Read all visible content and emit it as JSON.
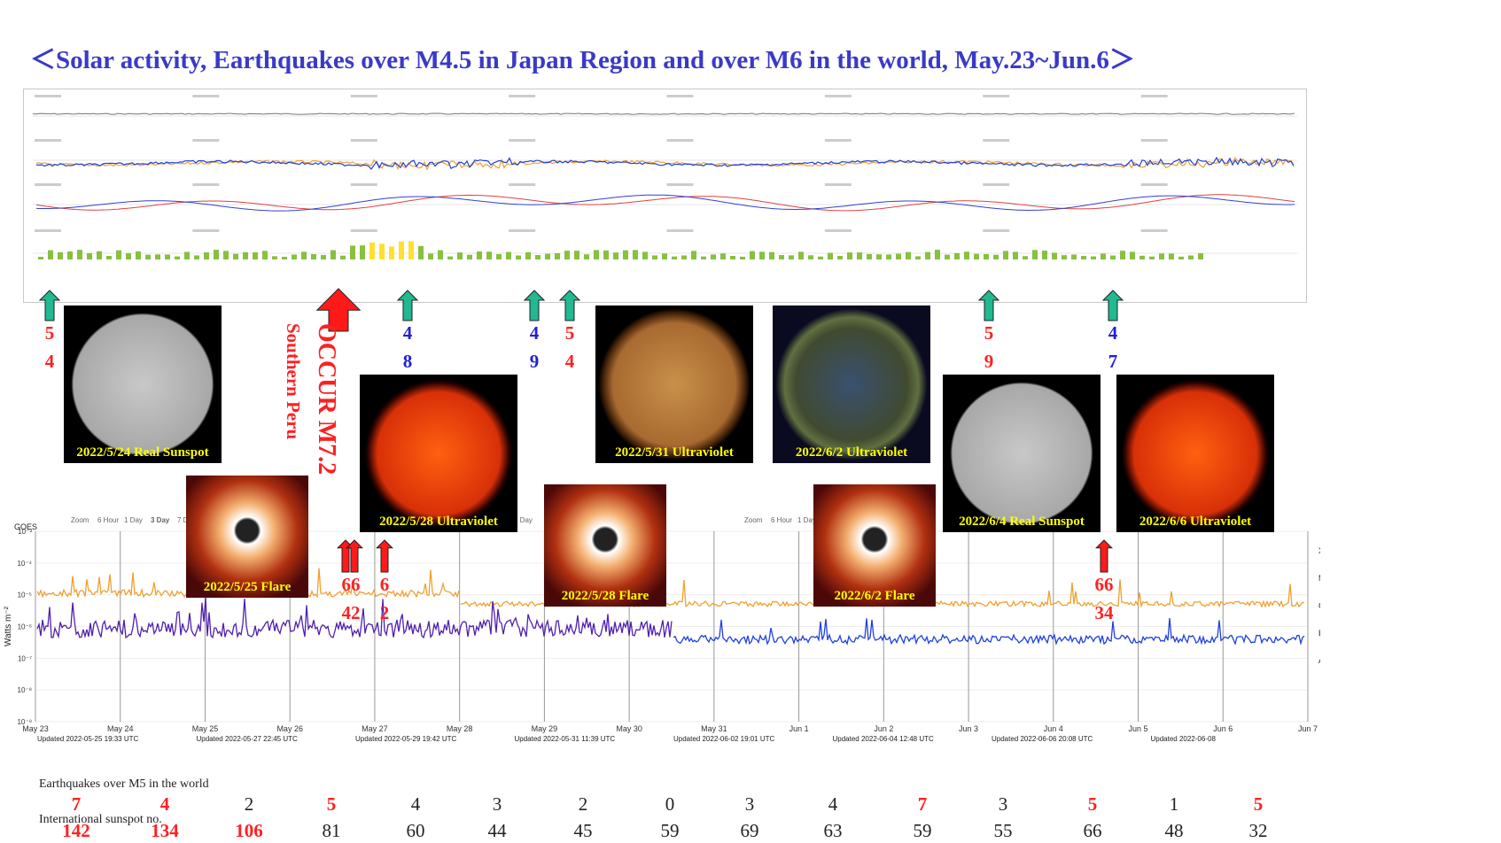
{
  "title": "＜Solar activity, Earthquakes over M4.5 in Japan Region and over M6 in the world,   May.23~Jun.6＞",
  "colors": {
    "title": "#3a3ac8",
    "red": "#ff2020",
    "blue": "#2020d8",
    "green_arrow": "#22b890",
    "orange_flux": "#f0a030",
    "purple_flux": "#5020b0",
    "blue_flux": "#2040e0"
  },
  "sun_images": [
    {
      "caption": "2022/5/24 Real Sunspot",
      "kind": "visible"
    },
    {
      "caption": "2022/5/25 Flare",
      "kind": "lasco"
    },
    {
      "caption": "2022/5/28 Ultraviolet",
      "kind": "uv-red"
    },
    {
      "caption": "2022/5/28 Flare",
      "kind": "lasco"
    },
    {
      "caption": "2022/5/31 Ultraviolet",
      "kind": "uv-gold"
    },
    {
      "caption": "2022/6/2 Ultraviolet",
      "kind": "uv-blue"
    },
    {
      "caption": "2022/6/2 Flare",
      "kind": "lasco"
    },
    {
      "caption": "2022/6/4 Real Sunspot",
      "kind": "visible"
    },
    {
      "caption": "2022/6/6 Ultraviolet",
      "kind": "uv-red"
    }
  ],
  "green_arrows": [
    {
      "top": "5",
      "bottom": "4",
      "top_color": "red",
      "bottom_color": "red"
    },
    {
      "top": "4",
      "bottom": "8",
      "top_color": "blue",
      "bottom_color": "blue"
    },
    {
      "top": "4",
      "bottom": "9",
      "top_color": "blue",
      "bottom_color": "blue"
    },
    {
      "top": "5",
      "bottom": "4",
      "top_color": "red",
      "bottom_color": "red"
    },
    {
      "top": "5",
      "bottom": "9",
      "top_color": "red",
      "bottom_color": "red"
    },
    {
      "top": "4",
      "bottom": "7",
      "top_color": "blue",
      "bottom_color": "blue"
    }
  ],
  "occur": {
    "text": "OCCUR M7.2",
    "sub": "Southern Peru"
  },
  "red_arrows": [
    {
      "top": "66",
      "bottom": "42"
    },
    {
      "top": "6",
      "bottom": "2"
    },
    {
      "top": "66",
      "bottom": "34"
    }
  ],
  "xray": {
    "zoom_labels": [
      "Zoom",
      "6 Hour",
      "1 Day",
      "3 Day",
      "7 Day"
    ],
    "goes_label": "GOES",
    "ylabel": "Watts m⁻²",
    "class_labels": [
      "X",
      "M",
      "C",
      "B",
      "A"
    ],
    "yticks": [
      "10⁻³",
      "10⁻⁴",
      "10⁻⁵",
      "10⁻⁶",
      "10⁻⁷",
      "10⁻⁸",
      "10⁻⁹"
    ],
    "date_ticks": [
      "May 23",
      "May 24",
      "May 25",
      "May 26",
      "May 27",
      "May 28",
      "May 29",
      "May 30",
      "May 31",
      "Jun 1",
      "Jun 2",
      "Jun 3",
      "Jun 4",
      "Jun 5",
      "Jun 6",
      "Jun 7"
    ],
    "updated": [
      "Updated 2022-05-25 19:33 UTC",
      "Updated 2022-05-27 22:45 UTC",
      "Updated 2022-05-29 19:42 UTC",
      "Updated 2022-05-31 11:39 UTC",
      "Updated 2022-06-02 19:01 UTC",
      "Updated 2022-06-04 12:48 UTC",
      "Updated 2022-06-06 20:08 UTC",
      "Updated 2022-06-08"
    ]
  },
  "bottom": {
    "eq_label": "Earthquakes over M5 in the world",
    "ssn_label": "International sunspot no.",
    "eq_counts": [
      {
        "v": "7",
        "red": true
      },
      {
        "v": "4",
        "red": true
      },
      {
        "v": "2",
        "red": false
      },
      {
        "v": "5",
        "red": true
      },
      {
        "v": "4",
        "red": false
      },
      {
        "v": "3",
        "red": false
      },
      {
        "v": "2",
        "red": false
      },
      {
        "v": "0",
        "red": false
      },
      {
        "v": "3",
        "red": false
      },
      {
        "v": "4",
        "red": false
      },
      {
        "v": "7",
        "red": true
      },
      {
        "v": "3",
        "red": false
      },
      {
        "v": "5",
        "red": true
      },
      {
        "v": "1",
        "red": false
      },
      {
        "v": "5",
        "red": true
      }
    ],
    "sunspots": [
      {
        "v": "142",
        "red": true
      },
      {
        "v": "134",
        "red": true
      },
      {
        "v": "106",
        "red": true
      },
      {
        "v": "81",
        "red": false
      },
      {
        "v": "60",
        "red": false
      },
      {
        "v": "44",
        "red": false
      },
      {
        "v": "45",
        "red": false
      },
      {
        "v": "59",
        "red": false
      },
      {
        "v": "69",
        "red": false
      },
      {
        "v": "63",
        "red": false
      },
      {
        "v": "59",
        "red": false
      },
      {
        "v": "55",
        "red": false
      },
      {
        "v": "66",
        "red": false
      },
      {
        "v": "48",
        "red": false
      },
      {
        "v": "32",
        "red": false
      }
    ]
  },
  "chart_data": [
    {
      "type": "bar",
      "categories": [
        "May 23",
        "May 24",
        "May 25",
        "May 26",
        "May 27",
        "May 28",
        "May 29",
        "May 30",
        "May 31",
        "Jun 1",
        "Jun 2",
        "Jun 3",
        "Jun 4",
        "Jun 5",
        "Jun 6"
      ],
      "series": [
        {
          "values": [
            7,
            4,
            2,
            5,
            4,
            3,
            2,
            0,
            3,
            4,
            7,
            3,
            5,
            1,
            5
          ]
        },
        {
          "values": [
            142,
            134,
            106,
            81,
            60,
            44,
            45,
            59,
            69,
            63,
            59,
            55,
            66,
            48,
            32
          ]
        }
      ]
    },
    {
      "type": "line",
      "x": [
        "May 23",
        "May 24",
        "May 25",
        "May 26",
        "May 27",
        "May 28",
        "May 29",
        "May 30",
        "May 31",
        "Jun 1",
        "Jun 2",
        "Jun 3",
        "Jun 4",
        "Jun 5",
        "Jun 6",
        "Jun 7"
      ],
      "ylabel": "Watts m⁻²",
      "ylog": true
    }
  ]
}
